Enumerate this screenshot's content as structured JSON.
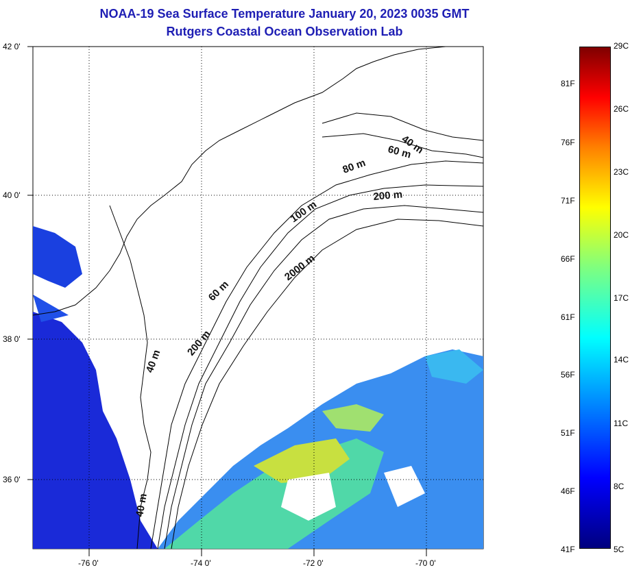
{
  "title": {
    "line1": "NOAA-19 Sea Surface Temperature January 20, 2023 0035 GMT",
    "line2": "Rutgers Coastal Ocean Observation Lab"
  },
  "map": {
    "lat_ticks": [
      "42 0'",
      "40 0'",
      "38 0'",
      "36 0'"
    ],
    "lon_ticks": [
      "-76 0'",
      "-74 0'",
      "-72 0'",
      "-70 0'"
    ],
    "contour_labels": [
      "40 m",
      "60 m",
      "80 m",
      "200 m",
      "100 m",
      "2000 m",
      "60 m",
      "200 m",
      "40 m",
      "40 m"
    ],
    "land_color": "#ffffff",
    "colors": {
      "cold": "#1020d0",
      "cool": "#30a0ff",
      "mid": "#40e0a0",
      "warm": "#e0e030"
    }
  },
  "colorbar": {
    "celsius": [
      "29C",
      "26C",
      "23C",
      "20C",
      "17C",
      "14C",
      "11C",
      "8C",
      "5C"
    ],
    "fahrenheit": [
      "81F",
      "76F",
      "71F",
      "66F",
      "61F",
      "56F",
      "51F",
      "46F",
      "41F"
    ]
  }
}
